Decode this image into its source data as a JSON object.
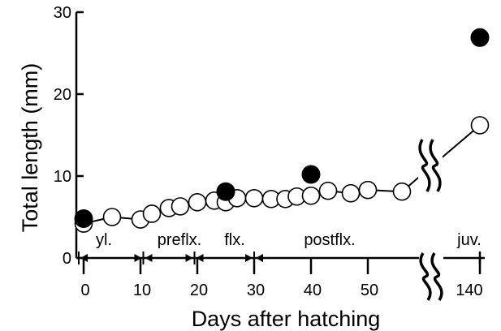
{
  "chart_data": {
    "type": "scatter",
    "xlabel": "Days after hatching",
    "ylabel": "Total length (mm)",
    "ylim": [
      0,
      30
    ],
    "y_ticks": [
      0,
      10,
      20,
      30
    ],
    "x_ticks": [
      0,
      10,
      20,
      30,
      40,
      50,
      140
    ],
    "x_axis_break_between": [
      55,
      140
    ],
    "series": [
      {
        "marker": "open-circle",
        "connected": true,
        "points": [
          {
            "x": 0,
            "y": 4.2
          },
          {
            "x": 5,
            "y": 5.0
          },
          {
            "x": 10,
            "y": 4.7
          },
          {
            "x": 12,
            "y": 5.4
          },
          {
            "x": 15,
            "y": 6.1
          },
          {
            "x": 17,
            "y": 6.3
          },
          {
            "x": 20,
            "y": 6.8
          },
          {
            "x": 23,
            "y": 7.0
          },
          {
            "x": 25,
            "y": 6.8
          },
          {
            "x": 27,
            "y": 7.3
          },
          {
            "x": 30,
            "y": 7.3
          },
          {
            "x": 33,
            "y": 7.2
          },
          {
            "x": 35.5,
            "y": 7.2
          },
          {
            "x": 37.5,
            "y": 7.5
          },
          {
            "x": 40,
            "y": 7.6
          },
          {
            "x": 43,
            "y": 8.2
          },
          {
            "x": 47,
            "y": 7.9
          },
          {
            "x": 50,
            "y": 8.3
          },
          {
            "x": 56,
            "y": 8.1
          },
          {
            "x": 140,
            "y": 16.2
          }
        ]
      },
      {
        "marker": "filled-circle",
        "connected": false,
        "points": [
          {
            "x": 0,
            "y": 4.8
          },
          {
            "x": 25,
            "y": 8.1
          },
          {
            "x": 40,
            "y": 10.2
          },
          {
            "x": 140,
            "y": 26.9
          }
        ]
      }
    ],
    "stages": [
      {
        "label": "yl.",
        "from": 0,
        "to": 10.5
      },
      {
        "label": "preflx.",
        "from": 10.5,
        "to": 19.5
      },
      {
        "label": "flx.",
        "from": 19.5,
        "to": 30
      },
      {
        "label": "postflx.",
        "from": 30,
        "to": 57
      },
      {
        "label": "juv.",
        "from": 140,
        "to": 140
      }
    ]
  }
}
